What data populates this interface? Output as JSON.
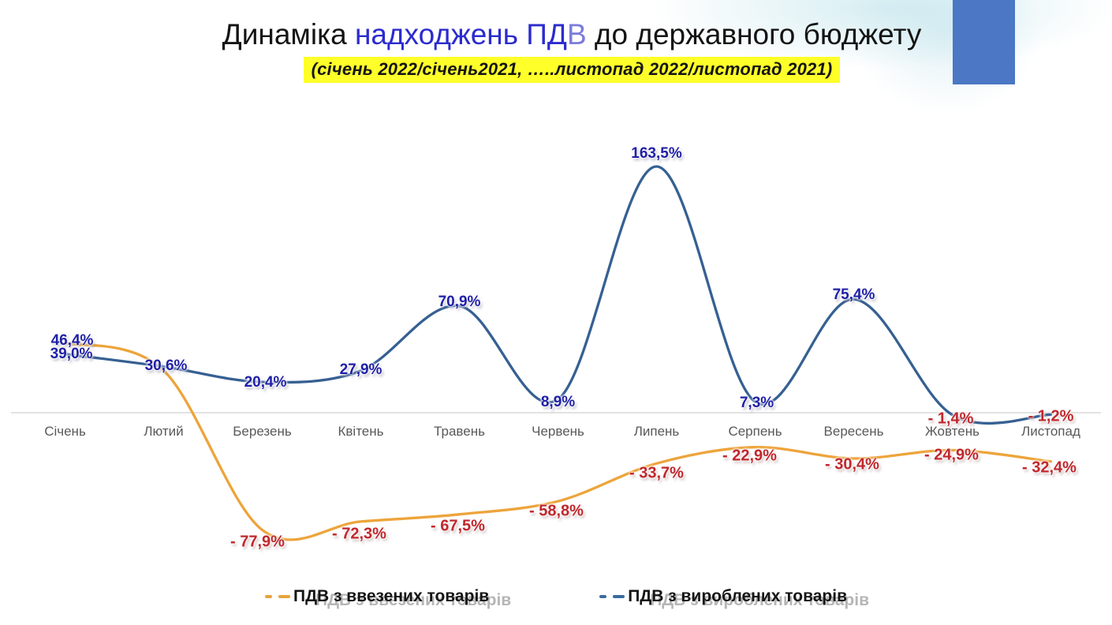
{
  "header": {
    "title_part1": "Динаміка ",
    "title_part2": "надходжень ПД",
    "title_part2b": "В",
    "title_part3": " до державного бюджету",
    "subtitle": "(січень 2022/січень2021, …..листопад 2022/листопад 2021)"
  },
  "chart_data": {
    "type": "line",
    "title": "Динаміка надходжень ПДВ до державного бюджету",
    "subtitle": "(січень 2022/січень2021, …..листопад 2022/листопад 2021)",
    "categories": [
      "Січень",
      "Лютий",
      "Березень",
      "Квітень",
      "Травень",
      "Червень",
      "Липень",
      "Серпень",
      "Вересень",
      "Жовтень",
      "Листопад"
    ],
    "series": [
      {
        "name": "ПДВ з ввезених товарів",
        "color": "#EDA43B",
        "values": [
          46.4,
          28.0,
          -77.9,
          -72.3,
          -67.5,
          -58.8,
          -33.7,
          -22.9,
          -30.4,
          -24.9,
          -32.4
        ],
        "labels": [
          "46,4%",
          "",
          "- 77,9%",
          "- 72,3%",
          "- 67,5%",
          "- 58,8%",
          "- 33,7%",
          "- 22,9%",
          "- 30,4%",
          "- 24,9%",
          "- 32,4%"
        ]
      },
      {
        "name": "ПДВ з вироблених товарів",
        "color": "#366092",
        "values": [
          39.0,
          30.6,
          20.4,
          27.9,
          70.9,
          8.9,
          163.5,
          7.3,
          75.4,
          -1.4,
          -1.2
        ],
        "labels": [
          "39,0%",
          "30,6%",
          "20,4%",
          "27,9%",
          "70,9%",
          "8,9%",
          "163,5%",
          "7,3%",
          "75,4%",
          "- 1,4%",
          "- 1,2%"
        ]
      }
    ],
    "ylim": [
      -90,
      175
    ],
    "grid": false,
    "zero_baseline_shown": true,
    "legend_position": "bottom",
    "label_color_positive": "#1F1FA6",
    "label_color_negative": "#C0272C",
    "accent_rect_color": "#4B77C4",
    "subtitle_highlight_color": "#FFFF29"
  }
}
